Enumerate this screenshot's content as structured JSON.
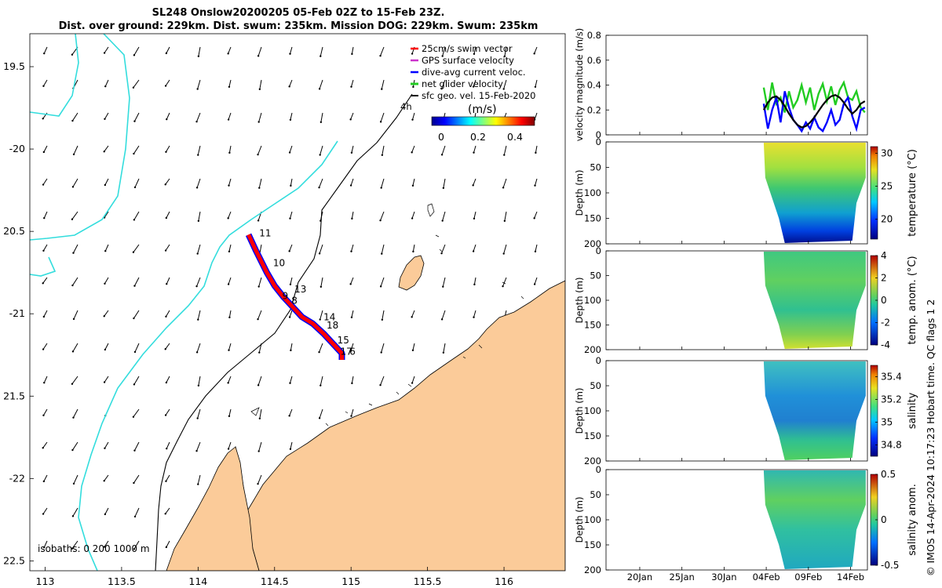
{
  "header": {
    "line1": "SL248 Onslow20200205 05-Feb 02Z to 15-Feb 23Z.",
    "line2": "Dist. over ground: 229km. Dist. swum: 235km. Mission DOG: 229km. Swum: 235km"
  },
  "credit": "© IMOS 14-Apr-2024 10:17:23 Hobart time. QC flags 1  2",
  "colors": {
    "land": "#fbcb99",
    "coastline_shallow": "#33dddd",
    "isobath": "#000000",
    "swim": "#ff0000",
    "gps": "#cc33cc",
    "dac": "#0000ff",
    "net": "#22cc22",
    "sfc": "#000000"
  },
  "chart_data": [
    {
      "type": "map",
      "name": "track-map",
      "xlim": [
        112.9,
        116.4
      ],
      "ylim": [
        -22.56,
        -19.3
      ],
      "x_ticks": [
        113,
        113.5,
        114,
        114.5,
        115,
        115.5,
        116
      ],
      "x_tick_labels": [
        "113",
        "113.5",
        "114",
        "114.5",
        "115",
        "115.5",
        "116"
      ],
      "y_ticks": [
        -19.5,
        -20,
        -20.5,
        -21,
        -21.5,
        -22,
        -22.5
      ],
      "y_tick_labels": [
        "19.5",
        "-20",
        "20.5",
        "-21",
        "21.5",
        "-22",
        "22.5"
      ],
      "legend": {
        "position": "top-right",
        "entries": [
          {
            "label": "25cm/s swim vector",
            "color": "#ff0000"
          },
          {
            "label": "GPS surface velocity",
            "color": "#cc33cc"
          },
          {
            "label": "dive-avg current veloc.",
            "color": "#0000ff"
          },
          {
            "label": "net glider velocity",
            "color": "#22cc22"
          },
          {
            "label": "sfc geo. vel. 15-Feb-2020",
            "color": "#000000"
          }
        ],
        "extra_label": "4h"
      },
      "colorbar": {
        "label": "(m/s)",
        "ticks": [
          "0",
          "0.2",
          "0.4"
        ],
        "range": [
          0,
          0.5
        ]
      },
      "isobath_label": "isobaths: 0   200   1000 m",
      "track": [
        [
          114.33,
          -20.52
        ],
        [
          114.38,
          -20.62
        ],
        [
          114.45,
          -20.75
        ],
        [
          114.5,
          -20.83
        ],
        [
          114.56,
          -20.9
        ],
        [
          114.62,
          -20.96
        ],
        [
          114.68,
          -21.02
        ],
        [
          114.75,
          -21.06
        ],
        [
          114.82,
          -21.12
        ],
        [
          114.88,
          -21.18
        ],
        [
          114.94,
          -21.24
        ],
        [
          114.94,
          -21.28
        ]
      ],
      "day_labels": [
        {
          "text": "11",
          "lon": 114.4,
          "lat": -20.53
        },
        {
          "text": "10",
          "lon": 114.49,
          "lat": -20.71
        },
        {
          "text": "13",
          "lon": 114.63,
          "lat": -20.87
        },
        {
          "text": "9",
          "lon": 114.55,
          "lat": -20.91
        },
        {
          "text": "8",
          "lon": 114.61,
          "lat": -20.94
        },
        {
          "text": "14",
          "lon": 114.82,
          "lat": -21.04
        },
        {
          "text": "18",
          "lon": 114.84,
          "lat": -21.09
        },
        {
          "text": "15",
          "lon": 114.91,
          "lat": -21.18
        },
        {
          "text": "17",
          "lon": 114.93,
          "lat": -21.25
        },
        {
          "text": "6",
          "lon": 114.99,
          "lat": -21.25
        }
      ]
    },
    {
      "type": "line",
      "name": "velocity-magnitude",
      "ylabel": "velocity magnitude (m/s)",
      "ylim": [
        0,
        0.8
      ],
      "y_ticks": [
        "0",
        "0.2",
        "0.4",
        "0.6",
        "0.8"
      ],
      "x_domain_days": [
        0,
        31
      ],
      "series": [
        {
          "color": "#22cc22",
          "x": [
            18.7,
            19.2,
            19.7,
            20.2,
            20.7,
            21.2,
            21.7,
            22.2,
            22.7,
            23.2,
            23.7,
            24.2,
            24.7,
            25.2,
            25.7,
            26.2,
            26.7,
            27.2,
            27.7,
            28.2,
            28.7,
            29.2,
            29.7,
            30.2,
            30.7
          ],
          "y": [
            0.38,
            0.2,
            0.42,
            0.25,
            0.3,
            0.18,
            0.35,
            0.22,
            0.28,
            0.4,
            0.26,
            0.38,
            0.2,
            0.33,
            0.41,
            0.27,
            0.39,
            0.24,
            0.36,
            0.42,
            0.3,
            0.28,
            0.35,
            0.22,
            0.18
          ]
        },
        {
          "color": "#0000ff",
          "x": [
            18.7,
            19.2,
            19.7,
            20.2,
            20.7,
            21.2,
            21.7,
            22.2,
            22.7,
            23.2,
            23.7,
            24.2,
            24.7,
            25.2,
            25.7,
            26.2,
            26.7,
            27.2,
            27.7,
            28.2,
            28.7,
            29.2,
            29.7,
            30.2,
            30.7
          ],
          "y": [
            0.25,
            0.05,
            0.2,
            0.3,
            0.1,
            0.35,
            0.22,
            0.12,
            0.08,
            0.03,
            0.1,
            0.05,
            0.14,
            0.06,
            0.03,
            0.1,
            0.2,
            0.08,
            0.12,
            0.25,
            0.3,
            0.15,
            0.05,
            0.2,
            0.22
          ]
        },
        {
          "color": "#000000",
          "x": [
            18.7,
            19.2,
            19.7,
            20.2,
            20.7,
            21.2,
            21.7,
            22.2,
            22.7,
            23.2,
            23.7,
            24.2,
            24.7,
            25.2,
            25.7,
            26.2,
            26.7,
            27.2,
            27.7,
            28.2,
            28.7,
            29.2,
            29.7,
            30.2,
            30.7
          ],
          "y": [
            0.2,
            0.26,
            0.3,
            0.31,
            0.28,
            0.23,
            0.17,
            0.12,
            0.08,
            0.06,
            0.07,
            0.1,
            0.14,
            0.19,
            0.24,
            0.28,
            0.31,
            0.32,
            0.3,
            0.26,
            0.21,
            0.17,
            0.2,
            0.25,
            0.27
          ]
        }
      ]
    },
    {
      "type": "heatmap",
      "name": "temperature-section",
      "ylabel": "Depth (m)",
      "ylim": [
        200,
        0
      ],
      "y_ticks": [
        "0",
        "50",
        "100",
        "150",
        "200"
      ],
      "colorbar_label": "temperature (°C)",
      "colorbar_ticks": [
        "30",
        "25",
        "20"
      ],
      "clim": [
        17,
        31
      ]
    },
    {
      "type": "heatmap",
      "name": "temp-anomaly-section",
      "ylabel": "Depth (m)",
      "ylim": [
        200,
        0
      ],
      "y_ticks": [
        "0",
        "50",
        "100",
        "150",
        "200"
      ],
      "colorbar_label": "temp. anom. (°C)",
      "colorbar_ticks": [
        "4",
        "2",
        "0",
        "-2",
        "-4"
      ],
      "clim": [
        -4,
        4
      ]
    },
    {
      "type": "heatmap",
      "name": "salinity-section",
      "ylabel": "Depth (m)",
      "ylim": [
        200,
        0
      ],
      "y_ticks": [
        "0",
        "50",
        "100",
        "150",
        "200"
      ],
      "colorbar_label": "salinity",
      "colorbar_ticks": [
        "35.4",
        "35.2",
        "35",
        "34.8"
      ],
      "clim": [
        34.7,
        35.5
      ]
    },
    {
      "type": "heatmap",
      "name": "salinity-anomaly-section",
      "ylabel": "Depth (m)",
      "ylim": [
        200,
        0
      ],
      "y_ticks": [
        "0",
        "50",
        "100",
        "150",
        "200"
      ],
      "colorbar_label": "salinity anom.",
      "colorbar_ticks": [
        "0.5",
        "0",
        "-0.5"
      ],
      "clim": [
        -0.5,
        0.5
      ]
    }
  ],
  "time_axis": {
    "labels": [
      "20Jan",
      "25Jan",
      "30Jan",
      "04Feb",
      "09Feb",
      "14Feb"
    ],
    "days": [
      4,
      9,
      14,
      19,
      24,
      29
    ]
  }
}
